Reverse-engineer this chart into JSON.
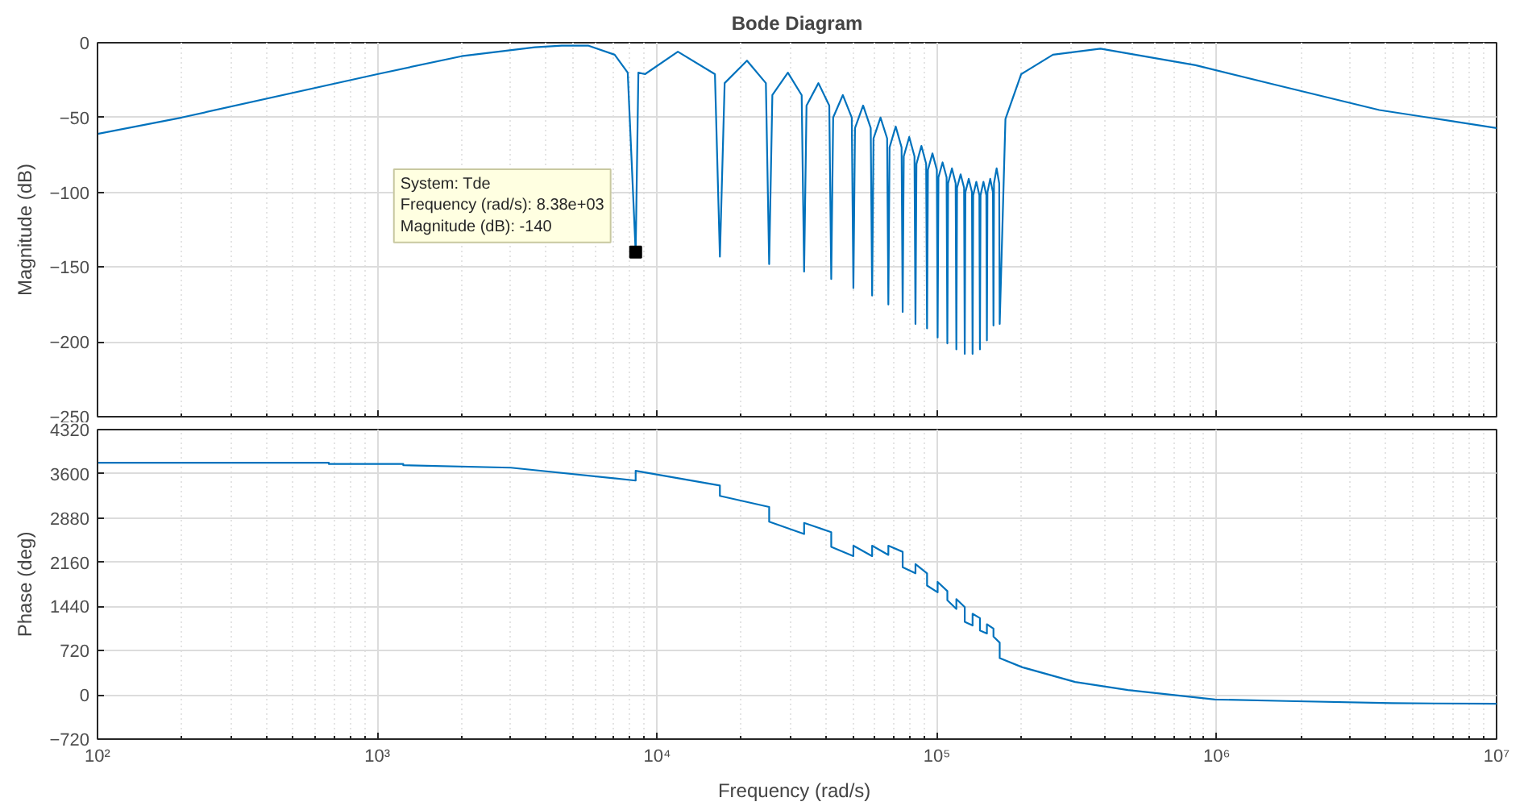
{
  "chart_data": [
    {
      "type": "line",
      "title": "Bode Diagram",
      "ylabel": "Magnitude (dB)",
      "log": "x",
      "grid": true,
      "tick_labels": "y",
      "xlim": [
        100,
        10000000
      ],
      "ylim": [
        -250,
        0
      ],
      "xticks": [
        {
          "value": 100,
          "label": null
        },
        {
          "value": 1000,
          "label": null
        },
        {
          "value": 10000,
          "label": null
        },
        {
          "value": 100000,
          "label": null
        },
        {
          "value": 1000000,
          "label": null
        },
        {
          "value": 10000000,
          "label": null
        }
      ],
      "yticks": [
        -250,
        -200,
        -150,
        -100,
        -50,
        0
      ],
      "annotations": [
        {
          "text": "System: Tde\nFrequency (rad/s): 8.38e+03\nMagnitude (dB): -140",
          "x": 8380,
          "y": -140
        }
      ],
      "series": [
        {
          "color": "#0072bd",
          "x": [
            100,
            200,
            1000,
            2000,
            3656,
            4560,
            5690,
            7050,
            7850,
            8380,
            8570,
            9050,
            11860,
            16090,
            16760,
            17430,
            20950,
            24470,
            25140,
            25810,
            29330,
            32850,
            33520,
            34190,
            37710,
            41230,
            41900,
            42570,
            46090,
            49610,
            50280,
            50950,
            54470,
            57990,
            58660,
            59330,
            62850,
            66370,
            67040,
            67710,
            71230,
            74750,
            75420,
            76090,
            79610,
            83130,
            83800,
            84470,
            87990,
            91510,
            92180,
            92850,
            96370,
            99890,
            100560,
            101230,
            104750,
            108270,
            108940,
            109610,
            113130,
            116650,
            117320,
            117990,
            121510,
            125030,
            125700,
            126370,
            129890,
            133410,
            134080,
            134750,
            138270,
            141790,
            142460,
            143130,
            146650,
            150170,
            150840,
            151510,
            155030,
            158550,
            159220,
            159890,
            163410,
            166930,
            167600,
            175700,
            200100,
            259700,
            384000,
            839900,
            1611000,
            3810000,
            10000000
          ],
          "values": [
            -61,
            -50,
            -21,
            -9,
            -3,
            -2,
            -2,
            -8,
            -20,
            -140,
            -20,
            -21,
            -6,
            -21,
            -143,
            -27,
            -12,
            -27,
            -148,
            -35,
            -20,
            -35,
            -153,
            -42,
            -27,
            -42,
            -158,
            -50,
            -35,
            -50,
            -164,
            -57,
            -42,
            -57,
            -169,
            -64,
            -50,
            -64,
            -175,
            -70,
            -56,
            -70,
            -180,
            -76,
            -63,
            -76,
            -188,
            -81,
            -69,
            -81,
            -191,
            -85,
            -74,
            -85,
            -197,
            -90,
            -80,
            -90,
            -201,
            -94,
            -84,
            -94,
            -205,
            -97,
            -88,
            -97,
            -208,
            -100,
            -91,
            -100,
            -208,
            -102,
            -93,
            -102,
            -205,
            -102,
            -93,
            -102,
            -199,
            -100,
            -91,
            -100,
            -189,
            -94,
            -84,
            -94,
            -188,
            -51,
            -21,
            -8,
            -4,
            -15,
            -28,
            -45,
            -57
          ]
        }
      ]
    },
    {
      "type": "line",
      "xlabel": "Frequency  (rad/s)",
      "ylabel": "Phase (deg)",
      "log": "x",
      "grid": true,
      "xlim": [
        100,
        10000000
      ],
      "ylim": [
        -720,
        4320
      ],
      "xticks": [
        {
          "value": 100,
          "label": "10²"
        },
        {
          "value": 1000,
          "label": "10³"
        },
        {
          "value": 10000,
          "label": "10⁴"
        },
        {
          "value": 100000,
          "label": "10⁵"
        },
        {
          "value": 1000000,
          "label": "10⁶"
        },
        {
          "value": 10000000,
          "label": "10⁷"
        }
      ],
      "yticks": [
        -720,
        0,
        720,
        1440,
        2160,
        2880,
        3600,
        4320
      ],
      "series": [
        {
          "color": "#0072bd",
          "x": [
            100,
            671,
            671,
            1238,
            1238,
            3000,
            8380,
            8380,
            16760,
            16760,
            25140,
            25140,
            33520,
            33520,
            41900,
            41900,
            50280,
            50280,
            58660,
            58660,
            67040,
            67040,
            75420,
            75420,
            83800,
            83800,
            92180,
            92180,
            100560,
            100560,
            108940,
            108940,
            117320,
            117320,
            125700,
            125700,
            134080,
            134080,
            142460,
            142460,
            150840,
            150840,
            159220,
            159220,
            167600,
            167600,
            201900,
            311800,
            481300,
            985800,
            1772000,
            4229000,
            10000000
          ],
          "values": [
            3780,
            3780,
            3760,
            3760,
            3740,
            3700,
            3490,
            3650,
            3410,
            3240,
            3060,
            2820,
            2620,
            2800,
            2650,
            2410,
            2260,
            2430,
            2260,
            2430,
            2280,
            2430,
            2330,
            2080,
            1980,
            2130,
            1980,
            1780,
            1670,
            1840,
            1690,
            1540,
            1400,
            1560,
            1430,
            1190,
            1130,
            1320,
            1250,
            1050,
            1000,
            1150,
            1080,
            950,
            850,
            600,
            450,
            210,
            80,
            -75,
            -100,
            -135,
            -145
          ]
        }
      ]
    }
  ]
}
